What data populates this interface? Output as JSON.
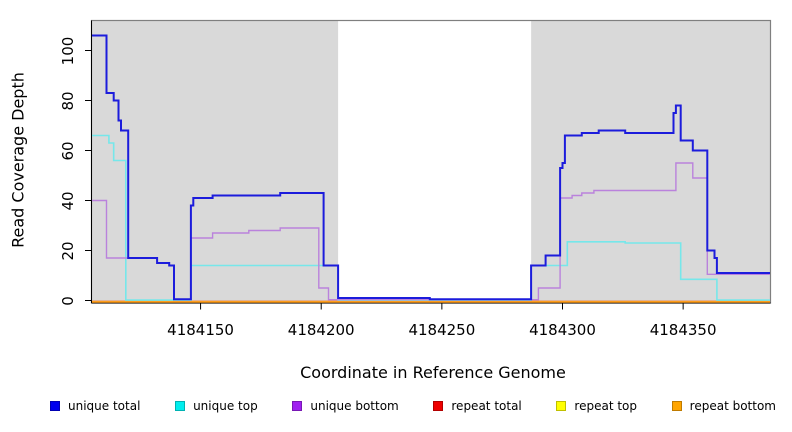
{
  "chart_data": {
    "type": "line",
    "subtype": "step-coverage",
    "title": "",
    "xlabel": "Coordinate in Reference Genome",
    "ylabel": "Read Coverage Depth",
    "xlim": [
      4184105,
      4184386
    ],
    "ylim": [
      0,
      110
    ],
    "xticks": [
      4184150,
      4184200,
      4184250,
      4184300,
      4184350
    ],
    "yticks": [
      0,
      20,
      40,
      60,
      80,
      100
    ],
    "grid": false,
    "legend_position": "bottom",
    "plot_background": "#ffffff",
    "shaded_band_color": "#d9d9d9",
    "shaded_regions": [
      {
        "from": 4184105,
        "to": 4184207
      },
      {
        "from": 4184287,
        "to": 4184386
      }
    ],
    "unshaded_gap": {
      "from": 4184207,
      "to": 4184287
    },
    "series": [
      {
        "name": "unique total",
        "legend_color": "#0000ee",
        "line_color": "#1c1cdc",
        "line_width": 2,
        "points": [
          [
            4184105,
            106
          ],
          [
            4184111,
            83
          ],
          [
            4184114,
            80
          ],
          [
            4184116,
            72
          ],
          [
            4184117,
            68
          ],
          [
            4184120,
            17
          ],
          [
            4184132,
            15
          ],
          [
            4184137,
            14
          ],
          [
            4184139,
            0.5
          ],
          [
            4184146,
            38
          ],
          [
            4184147,
            41
          ],
          [
            4184155,
            42
          ],
          [
            4184183,
            43
          ],
          [
            4184201,
            14
          ],
          [
            4184207,
            1
          ],
          [
            4184245,
            0
          ],
          [
            4184287,
            14
          ],
          [
            4184293,
            18
          ],
          [
            4184299,
            53
          ],
          [
            4184300,
            55
          ],
          [
            4184301,
            66
          ],
          [
            4184308,
            67
          ],
          [
            4184315,
            68
          ],
          [
            4184326,
            67
          ],
          [
            4184346,
            75
          ],
          [
            4184347,
            78
          ],
          [
            4184349,
            64
          ],
          [
            4184354,
            60
          ],
          [
            4184360,
            20
          ],
          [
            4184363,
            17
          ],
          [
            4184364,
            11
          ],
          [
            4184386,
            11
          ]
        ]
      },
      {
        "name": "unique top",
        "legend_color": "#00eeee",
        "line_color": "#76e7ea",
        "line_width": 1.6,
        "points": [
          [
            4184105,
            66
          ],
          [
            4184112,
            63
          ],
          [
            4184114,
            56
          ],
          [
            4184119,
            0
          ],
          [
            4184146,
            14
          ],
          [
            4184207,
            0
          ],
          [
            4184287,
            14
          ],
          [
            4184302,
            23.5
          ],
          [
            4184326,
            23
          ],
          [
            4184349,
            8.5
          ],
          [
            4184364,
            0
          ],
          [
            4184386,
            0
          ]
        ]
      },
      {
        "name": "unique bottom",
        "legend_color": "#a020f0",
        "line_color": "#ba82dc",
        "line_width": 1.4,
        "points": [
          [
            4184105,
            40
          ],
          [
            4184111,
            17
          ],
          [
            4184132,
            15
          ],
          [
            4184137,
            14
          ],
          [
            4184139,
            0.5
          ],
          [
            4184146,
            25
          ],
          [
            4184155,
            27
          ],
          [
            4184170,
            28
          ],
          [
            4184183,
            29
          ],
          [
            4184199,
            5
          ],
          [
            4184203,
            0
          ],
          [
            4184290,
            5
          ],
          [
            4184299,
            41
          ],
          [
            4184304,
            42
          ],
          [
            4184308,
            43
          ],
          [
            4184313,
            44
          ],
          [
            4184347,
            55
          ],
          [
            4184354,
            49
          ],
          [
            4184360,
            10.5
          ],
          [
            4184386,
            10.5
          ]
        ]
      },
      {
        "name": "repeat total",
        "legend_color": "#ee0000",
        "line_color": "#ee0000",
        "line_width": 1.2,
        "points": [
          [
            4184105,
            0
          ],
          [
            4184386,
            0
          ]
        ]
      },
      {
        "name": "repeat top",
        "legend_color": "#ffff00",
        "line_color": "#f5e400",
        "line_width": 1.2,
        "points": [
          [
            4184105,
            0
          ],
          [
            4184386,
            0
          ]
        ]
      },
      {
        "name": "repeat bottom",
        "legend_color": "#ffa500",
        "line_color": "#ff9e1b",
        "line_width": 1.8,
        "points": [
          [
            4184105,
            0
          ],
          [
            4184386,
            0
          ]
        ]
      }
    ]
  }
}
